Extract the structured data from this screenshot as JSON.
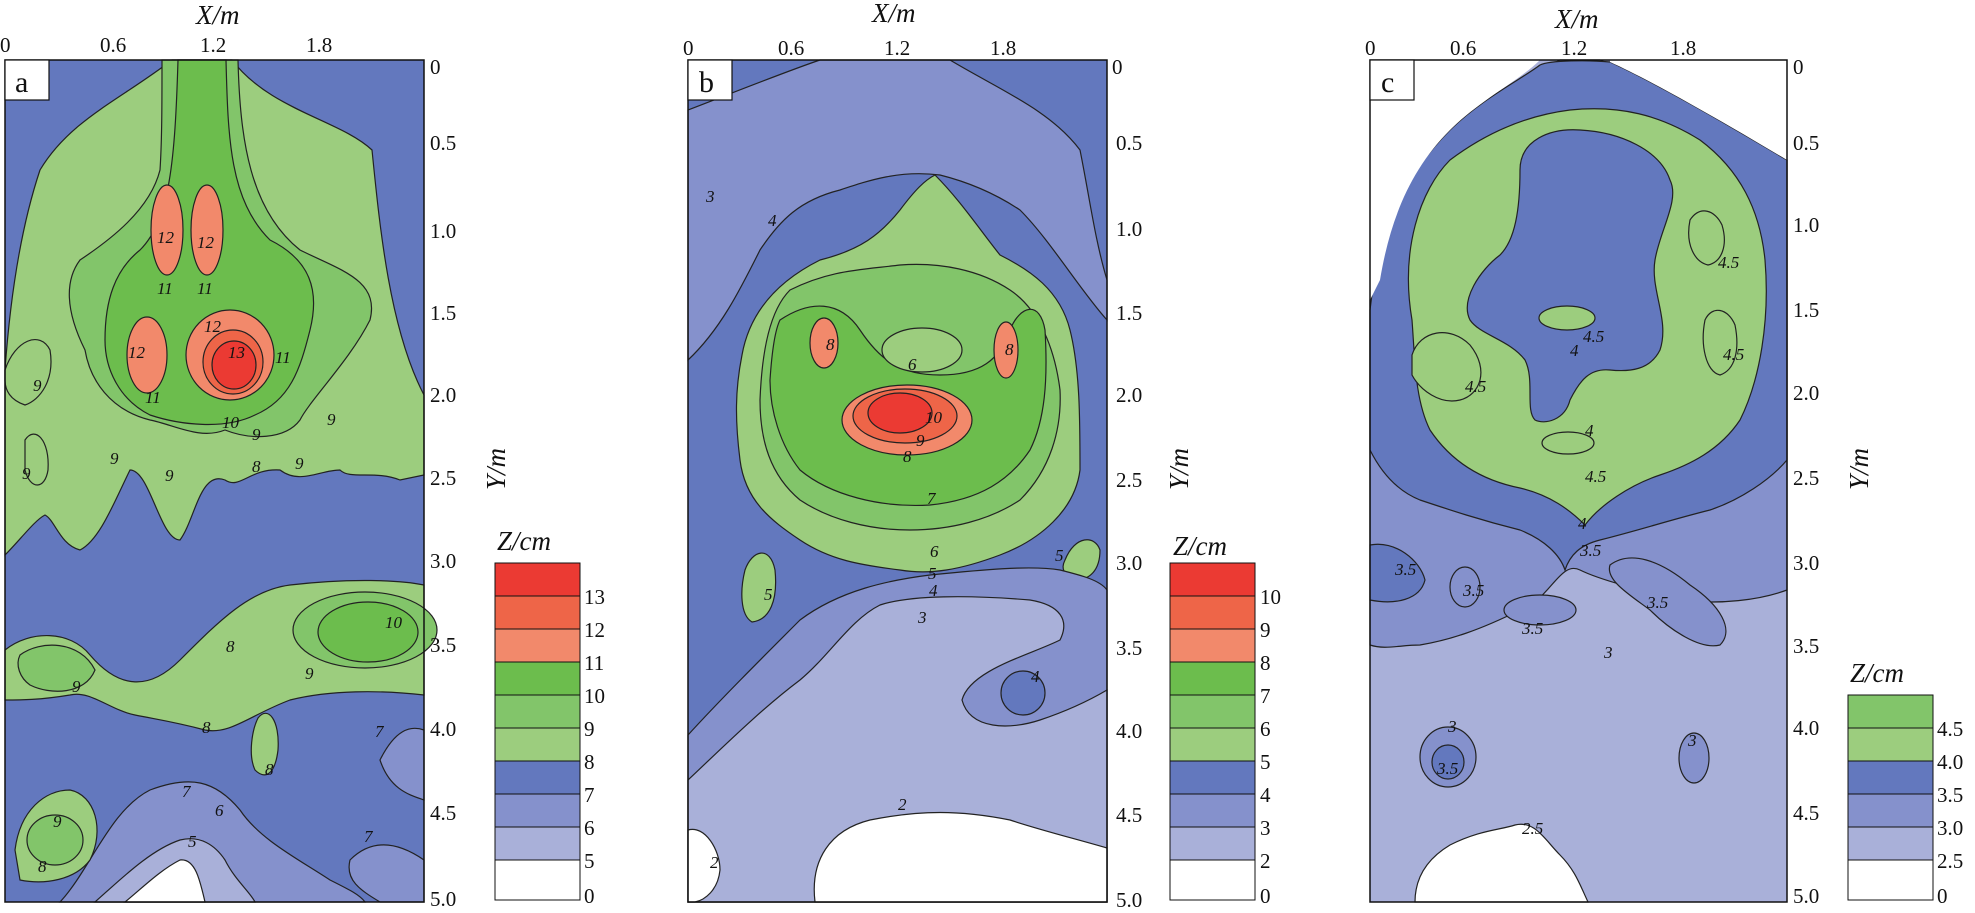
{
  "colors": {
    "white": "#ffffff",
    "blue_light": "#a9b0d9",
    "blue_mid": "#8591cc",
    "blue_dark": "#6378be",
    "green_light": "#9ccd7e",
    "green_mid": "#82c56a",
    "green_dark": "#6cbd4d",
    "salmon": "#f2896b",
    "orange_red": "#ee6548",
    "red": "#eb3a33"
  },
  "panels": [
    {
      "letter": "a",
      "x_axis_label": "X/m",
      "x_ticks": [
        "0",
        "0.6",
        "1.2",
        "1.8"
      ],
      "y_axis_label": "Y/m",
      "y_ticks": [
        "0",
        "0.5",
        "1.0",
        "1.5",
        "2.0",
        "2.5",
        "3.0",
        "3.5",
        "4.0",
        "4.5",
        "5.0"
      ],
      "legend_title": "Z/cm",
      "legend_labels": [
        "13",
        "12",
        "11",
        "10",
        "9",
        "8",
        "7",
        "6",
        "5",
        "0"
      ],
      "contour_labels": [
        "12",
        "12",
        "11",
        "11",
        "12",
        "12",
        "13",
        "11",
        "11",
        "10",
        "9",
        "9",
        "9",
        "9",
        "9",
        "8",
        "9",
        "9",
        "10",
        "9",
        "8",
        "9",
        "8",
        "8",
        "7",
        "7",
        "6",
        "5",
        "9",
        "8",
        "7"
      ]
    },
    {
      "letter": "b",
      "x_axis_label": "X/m",
      "x_ticks": [
        "0",
        "0.6",
        "1.2",
        "1.8"
      ],
      "y_axis_label": "Y/m",
      "y_ticks": [
        "0",
        "0.5",
        "1.0",
        "1.5",
        "2.0",
        "2.5",
        "3.0",
        "3.5",
        "4.0",
        "4.5",
        "5.0"
      ],
      "legend_title": "Z/cm",
      "legend_labels": [
        "10",
        "9",
        "8",
        "7",
        "6",
        "5",
        "4",
        "3",
        "2",
        "0"
      ],
      "contour_labels": [
        "3",
        "4",
        "8",
        "6",
        "8",
        "10",
        "9",
        "8",
        "7",
        "6",
        "5",
        "4",
        "3",
        "5",
        "5",
        "4",
        "2",
        "2"
      ]
    },
    {
      "letter": "c",
      "x_axis_label": "X/m",
      "x_ticks": [
        "0",
        "0.6",
        "1.2",
        "1.8"
      ],
      "y_axis_label": "Y/m",
      "y_ticks": [
        "0",
        "0.5",
        "1.0",
        "1.5",
        "2.0",
        "2.5",
        "3.0",
        "3.5",
        "4.0",
        "4.5",
        "5.0"
      ],
      "legend_title": "Z/cm",
      "legend_labels": [
        "4.5",
        "4.0",
        "3.5",
        "3.0",
        "2.5",
        "0"
      ],
      "contour_labels": [
        "4.5",
        "4.5",
        "4",
        "4.5",
        "4.5",
        "4",
        "4.5",
        "4",
        "3.5",
        "3.5",
        "3.5",
        "3.5",
        "3.5",
        "3",
        "3",
        "3.5",
        "3",
        "2.5"
      ]
    }
  ]
}
